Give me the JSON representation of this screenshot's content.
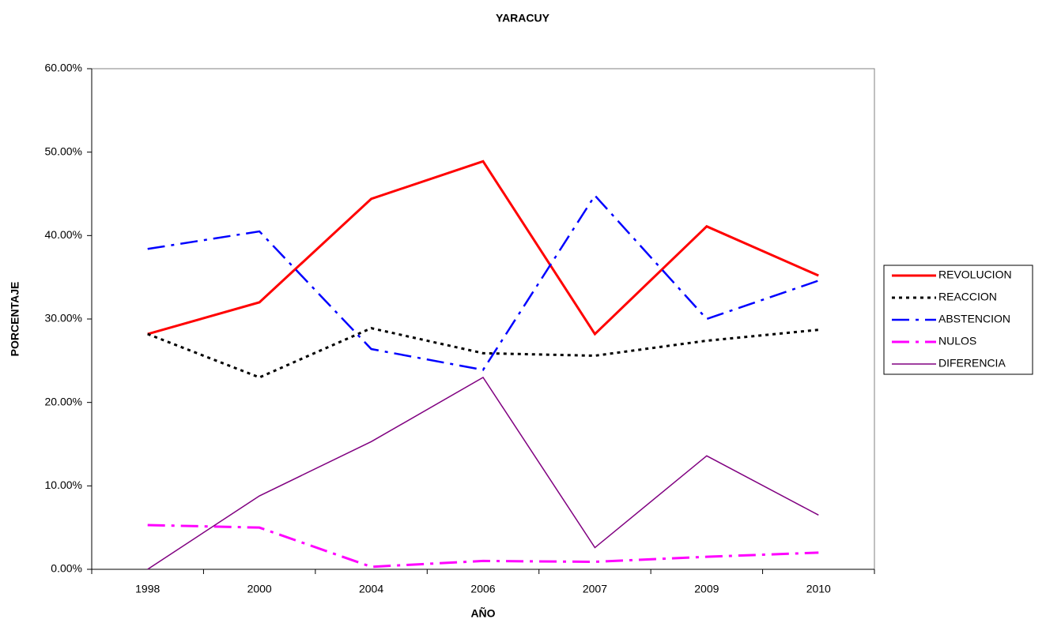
{
  "chart_data": {
    "type": "line",
    "title": "YARACUY",
    "x_label": "AÑO",
    "y_label": "PORCENTAJE",
    "categories": [
      "1998",
      "2000",
      "2004",
      "2006",
      "2007",
      "2009",
      "2010"
    ],
    "series": [
      {
        "name": "REVOLUCION",
        "color": "#ff0000",
        "values": [
          28.2,
          32.0,
          44.4,
          48.9,
          28.2,
          41.1,
          35.2
        ]
      },
      {
        "name": "REACCION",
        "color": "#000000",
        "values": [
          28.2,
          23.0,
          28.9,
          25.9,
          25.6,
          27.4,
          28.7
        ]
      },
      {
        "name": "ABSTENCION",
        "color": "#0000ff",
        "values": [
          38.4,
          40.5,
          26.4,
          23.9,
          44.8,
          30.0,
          34.6
        ]
      },
      {
        "name": "NULOS",
        "color": "#ff00ff",
        "values": [
          5.3,
          5.0,
          0.3,
          1.0,
          0.9,
          1.5,
          2.0
        ]
      },
      {
        "name": "DIFERENCIA",
        "color": "#800080",
        "values": [
          0,
          8.8,
          15.3,
          23.0,
          2.6,
          13.6,
          6.5
        ]
      }
    ],
    "ylim": [
      0,
      60
    ],
    "yticks": [
      {
        "value": 0,
        "label": "0.00%"
      },
      {
        "value": 10,
        "label": "10.00%"
      },
      {
        "value": 20,
        "label": "20.00%"
      },
      {
        "value": 30,
        "label": "30.00%"
      },
      {
        "value": 40,
        "label": "40.00%"
      },
      {
        "value": 50,
        "label": "50.00%"
      },
      {
        "value": 60,
        "label": "60.00%"
      }
    ],
    "legend": "right"
  }
}
